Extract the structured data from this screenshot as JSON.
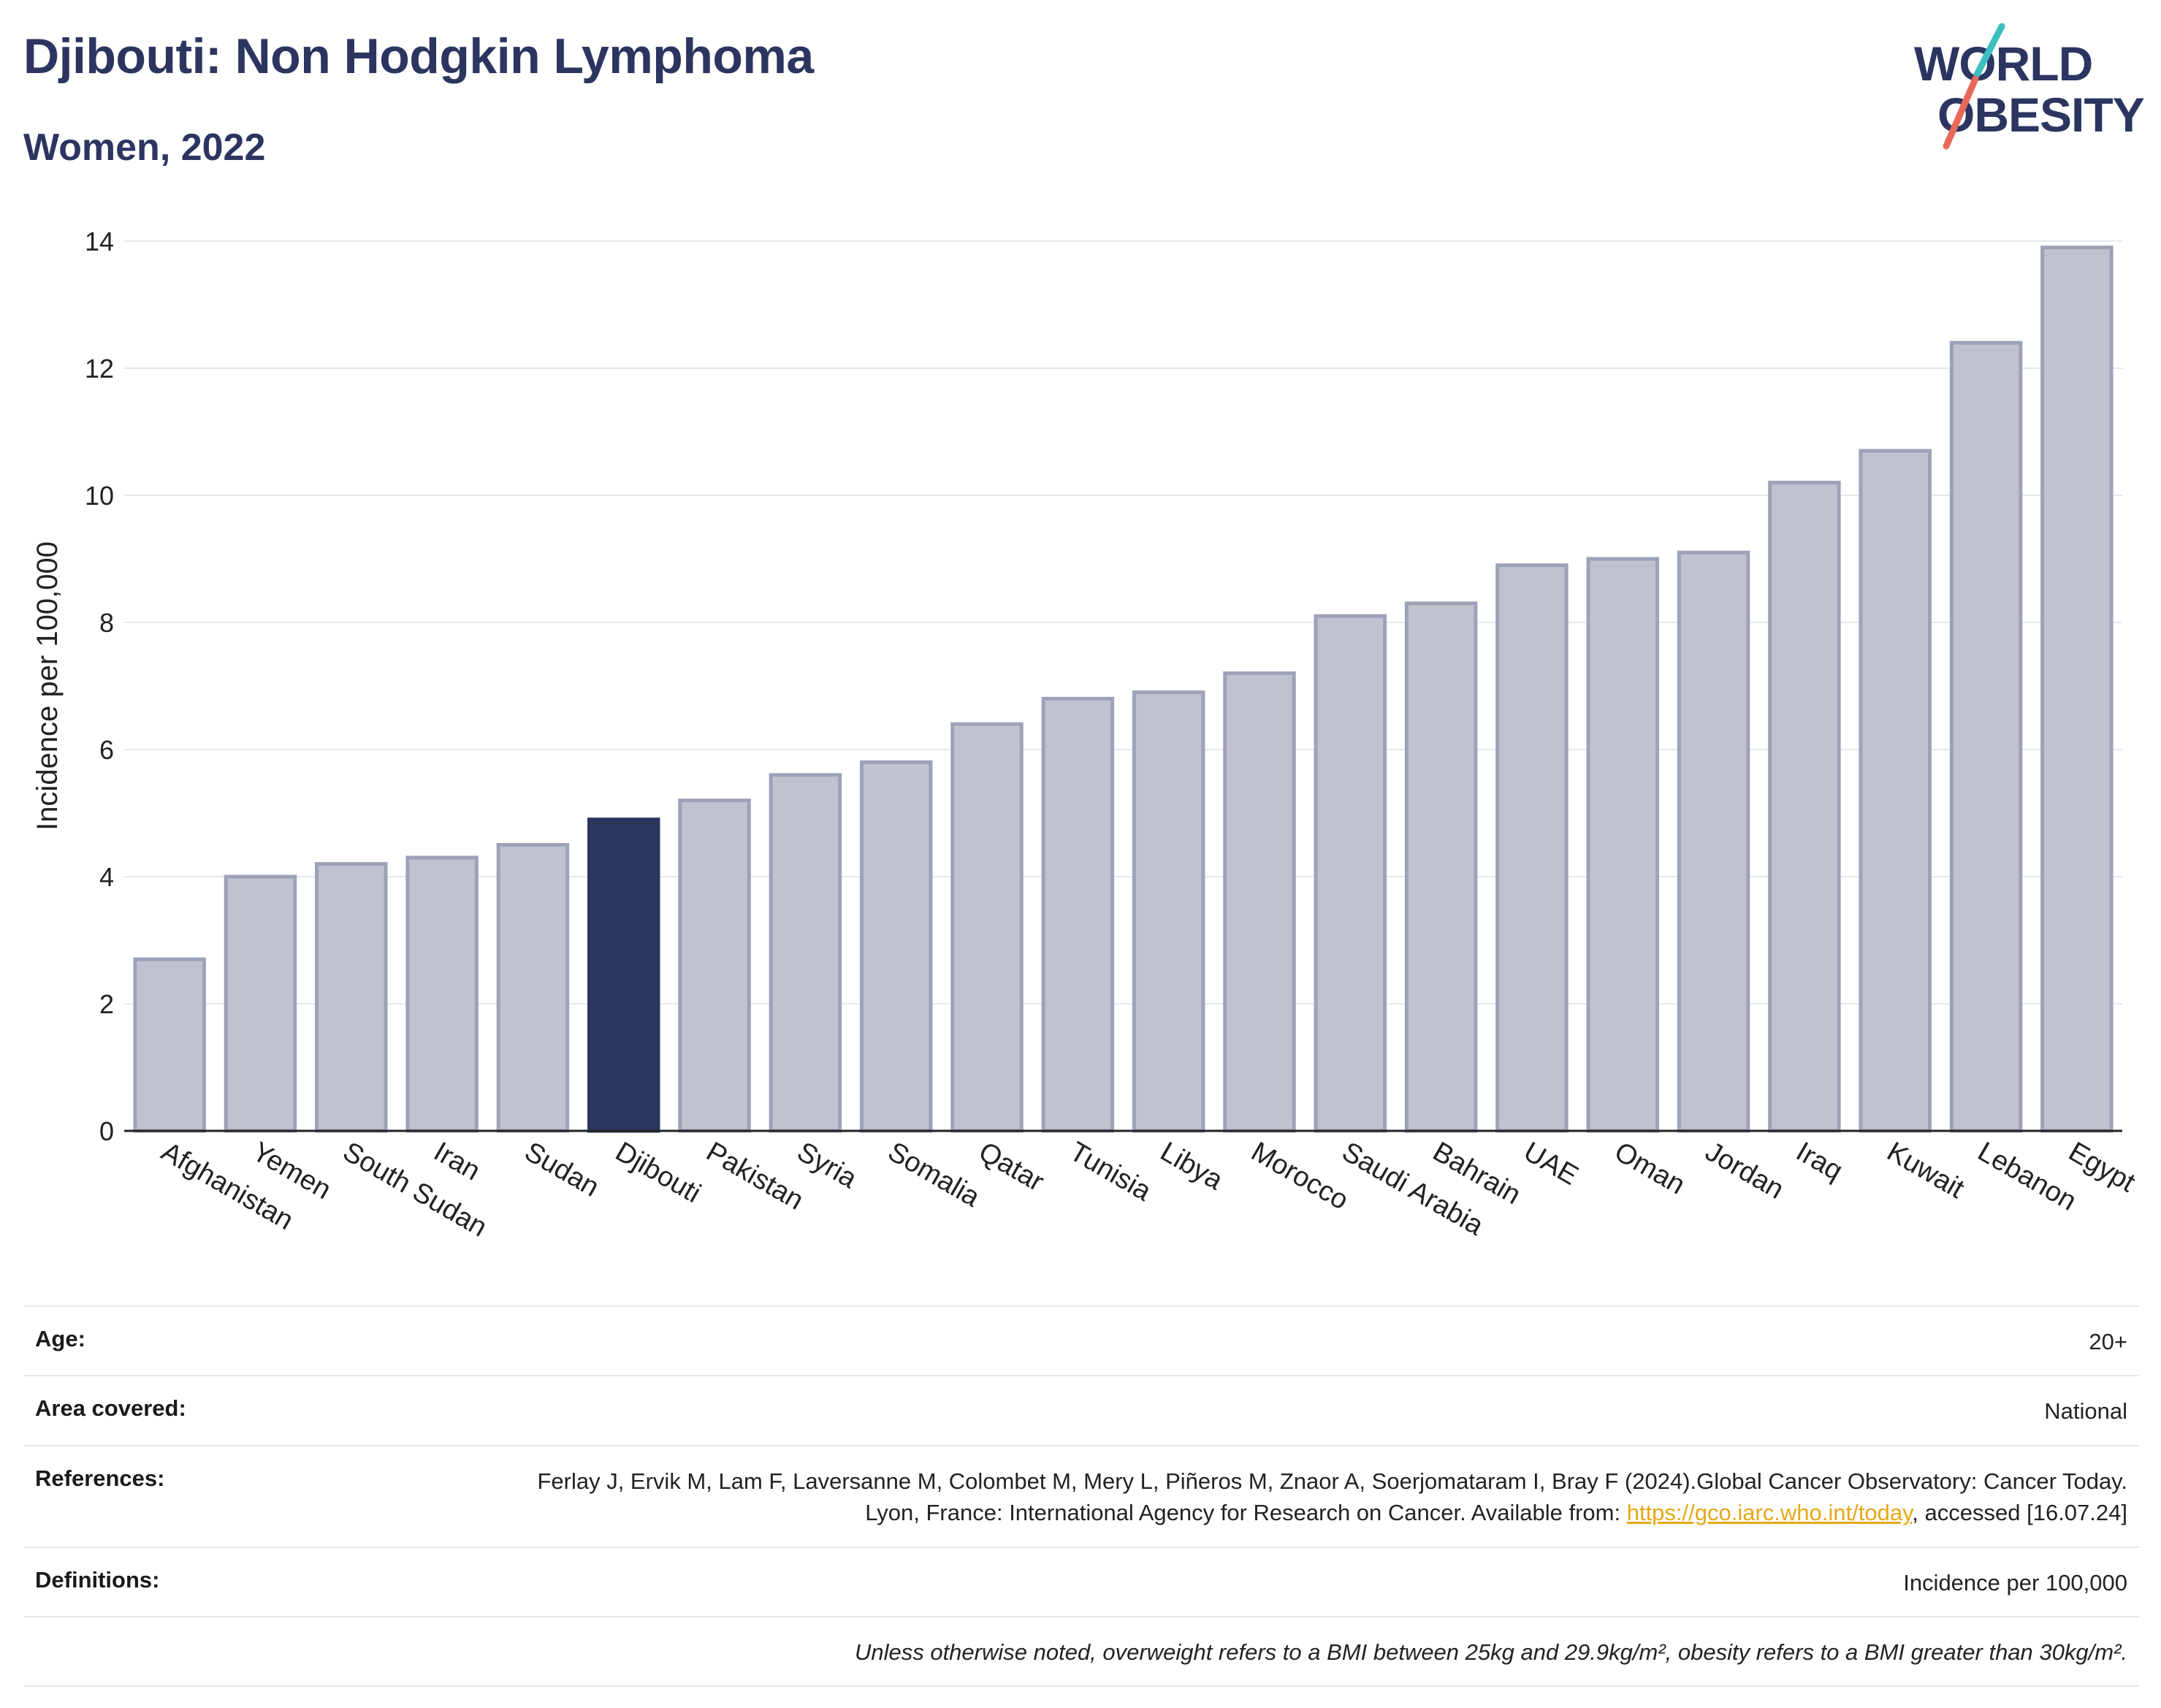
{
  "header": {
    "title": "Djibouti: Non Hodgkin Lymphoma",
    "subtitle": "Women, 2022"
  },
  "logo": {
    "line1": "WORLD",
    "line2": "OBESITY",
    "accent_teal": "#3bbfbf",
    "accent_coral": "#e8695a"
  },
  "colors": {
    "highlight": "#2b3560",
    "bar_fill": "#c0c3cf",
    "bar_stroke": "#9da2b8",
    "grid": "#e6e8ee",
    "text": "#2b3560"
  },
  "chart_data": {
    "type": "bar",
    "categories": [
      "Afghanistan",
      "Yemen",
      "South Sudan",
      "Iran",
      "Sudan",
      "Djibouti",
      "Pakistan",
      "Syria",
      "Somalia",
      "Qatar",
      "Tunisia",
      "Libya",
      "Morocco",
      "Saudi Arabia",
      "Bahrain",
      "UAE",
      "Oman",
      "Jordan",
      "Iraq",
      "Kuwait",
      "Lebanon",
      "Egypt"
    ],
    "values": [
      2.7,
      4.0,
      4.2,
      4.3,
      4.5,
      4.9,
      5.2,
      5.6,
      5.8,
      6.4,
      6.8,
      6.9,
      7.2,
      8.1,
      8.3,
      8.9,
      9.0,
      9.1,
      10.2,
      10.7,
      12.4,
      13.9
    ],
    "highlight": "Djibouti",
    "ylabel": "Incidence per 100,000",
    "ylim": [
      0,
      14
    ],
    "yticks": [
      0,
      2,
      4,
      6,
      8,
      10,
      12,
      14
    ],
    "grid": true
  },
  "info": {
    "age_label": "Age:",
    "age_value": "20+",
    "area_label": "Area covered:",
    "area_value": "National",
    "references_label": "References:",
    "references_text": "Ferlay J, Ervik M, Lam F, Laversanne M, Colombet M, Mery L, Piñeros M, Znaor A, Soerjomataram I, Bray F (2024).Global Cancer Observatory: Cancer Today. Lyon, France: International Agency for Research on Cancer. Available from: ",
    "references_link": "https://gco.iarc.who.int/today",
    "references_tail": ", accessed [16.07.24]",
    "definitions_label": "Definitions:",
    "definitions_value": "Incidence per 100,000",
    "note": "Unless otherwise noted, overweight refers to a BMI between 25kg and 29.9kg/m², obesity refers to a BMI greater than 30kg/m²."
  }
}
